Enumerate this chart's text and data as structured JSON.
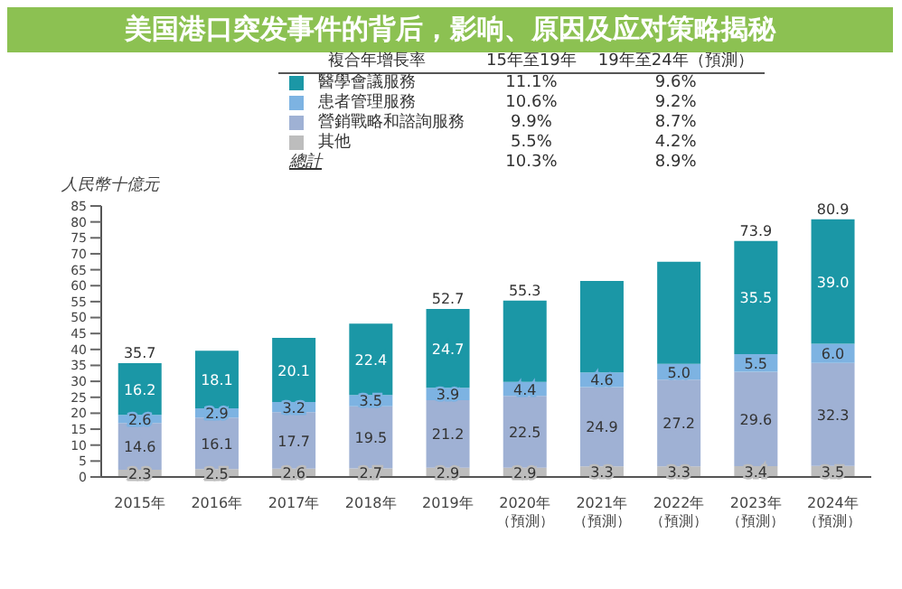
{
  "chart_data": {
    "type": "bar",
    "stacked": true,
    "title": "美国港口突发事件的背后，影响、原因及应对策略揭秘",
    "ylabel": "人民幣十億元",
    "categories": [
      "2015年",
      "2016年",
      "2017年",
      "2018年",
      "2019年",
      "2020年（預測）",
      "2021年（預測）",
      "2022年（預測）",
      "2023年（預測）",
      "2024年（預測）"
    ],
    "ylim": [
      0,
      85
    ],
    "yticks": [
      0,
      5,
      10,
      15,
      20,
      25,
      30,
      35,
      40,
      45,
      50,
      55,
      60,
      65,
      70,
      75,
      80,
      85
    ],
    "legend": "top",
    "grid": false,
    "series": [
      {
        "name": "其他",
        "color": "#bdbdbd",
        "values": [
          2.3,
          2.5,
          2.6,
          2.7,
          2.9,
          2.9,
          3.3,
          3.3,
          3.4,
          3.5
        ],
        "value_labels": [
          "2.3",
          "2.5",
          "2.6",
          "2.7",
          "2.9",
          "2.9",
          "3.3",
          "3.3",
          "3.4",
          "3.5"
        ]
      },
      {
        "name": "營銷戰略和諮詢服務",
        "color": "#9fb1d4",
        "values": [
          14.6,
          16.1,
          17.7,
          19.5,
          21.2,
          22.5,
          24.9,
          27.2,
          29.6,
          32.3
        ],
        "value_labels": [
          "14.6",
          "16.1",
          "17.7",
          "19.5",
          "21.2",
          "22.5",
          "24.9",
          "27.2",
          "29.6",
          "32.3"
        ]
      },
      {
        "name": "患者管理服務",
        "color": "#7db3e2",
        "values": [
          2.6,
          2.9,
          3.2,
          3.5,
          3.9,
          4.4,
          4.6,
          5.0,
          5.5,
          6.0
        ],
        "value_labels": [
          "2.6",
          "2.9",
          "3.2",
          "3.5",
          "3.9",
          "4.4",
          "4.6",
          "5.0",
          "5.5",
          "6.0"
        ]
      },
      {
        "name": "醫學會議服務",
        "color": "#1b97a6",
        "values": [
          16.2,
          18.1,
          20.1,
          22.4,
          24.7,
          25.5,
          28.7,
          32.0,
          35.5,
          39.0
        ],
        "value_labels": [
          "16.2",
          "18.1",
          "20.1",
          "22.4",
          "24.7",
          null,
          null,
          null,
          "35.5",
          "39.0"
        ]
      }
    ],
    "totals": [
      "35.7",
      null,
      null,
      null,
      "52.7",
      "55.3",
      null,
      null,
      "73.9",
      "80.9"
    ],
    "annotations": [
      "複合年增長率",
      "15年至19年",
      "19年至24年（預測）",
      "11.1%",
      "9.6%",
      "10.6%",
      "9.2%",
      "9.9%",
      "8.7%",
      "5.5%",
      "4.2%",
      "總計",
      "10.3%",
      "8.9%"
    ]
  }
}
